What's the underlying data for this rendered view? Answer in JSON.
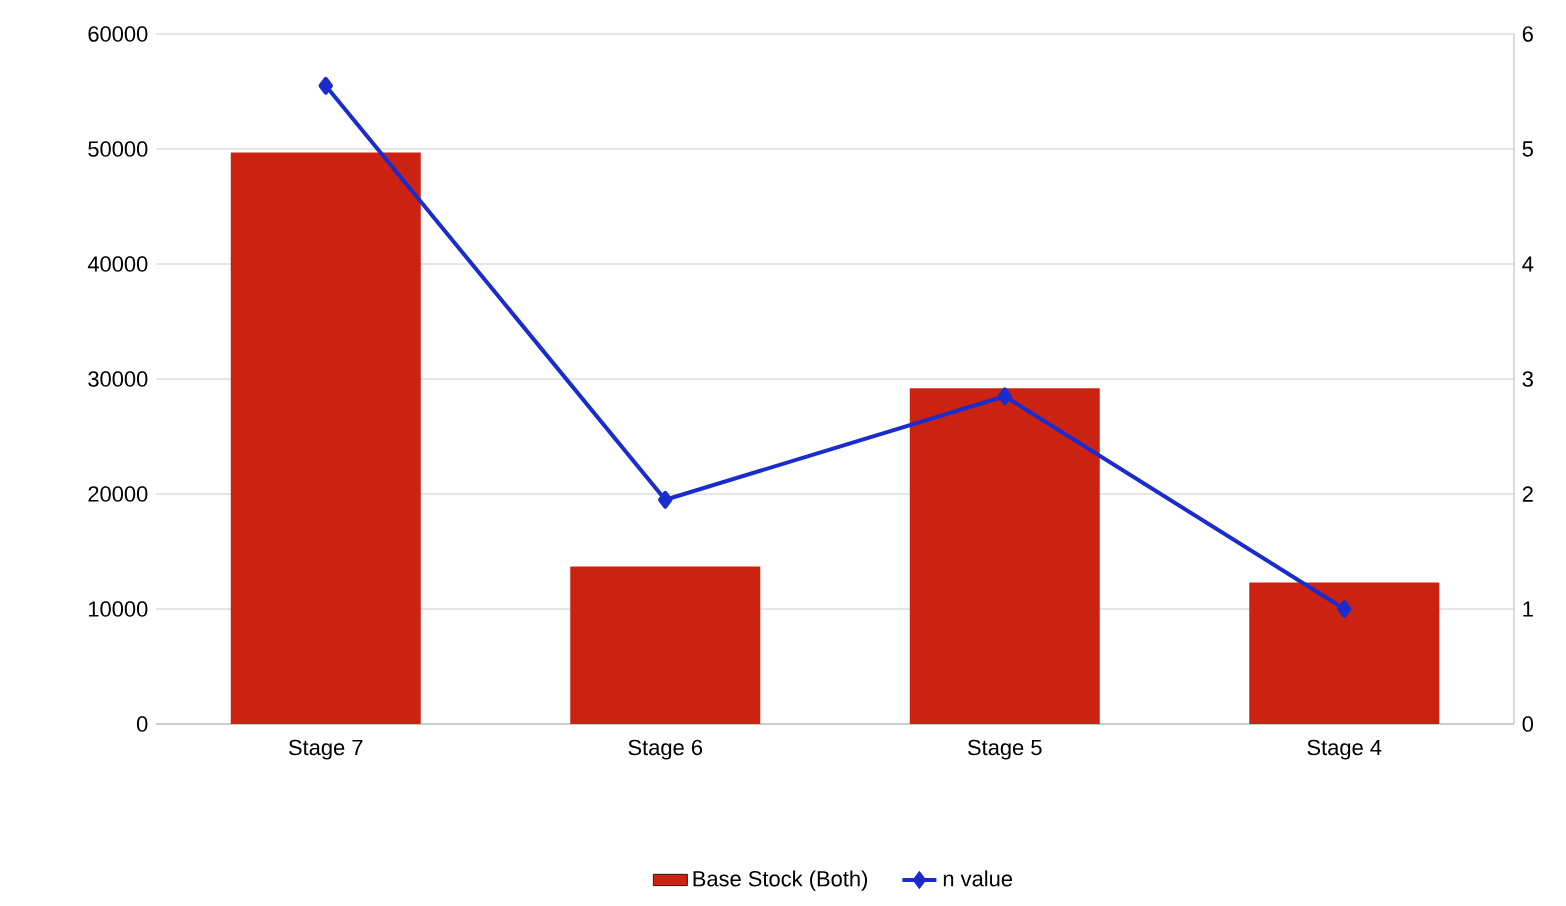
{
  "chart_data": {
    "type": "bar",
    "categories": [
      "Stage 7",
      "Stage 6",
      "Stage 5",
      "Stage 4"
    ],
    "series": [
      {
        "name": "Base Stock (Both)",
        "color": "#cc2211",
        "values": [
          49700,
          13700,
          29200,
          12300
        ]
      },
      {
        "name": "n value",
        "type": "line",
        "axis": "y2",
        "color": "#1a2ccc",
        "marker": "diamond",
        "values": [
          5.55,
          1.95,
          2.85,
          1.0
        ]
      }
    ],
    "ylim": [
      0,
      60000
    ],
    "yticks": [
      0,
      10000,
      20000,
      30000,
      40000,
      50000,
      60000
    ],
    "y2lim": [
      0,
      6
    ],
    "y2ticks": [
      0,
      1,
      2,
      3,
      4,
      5,
      6
    ],
    "grid": "y",
    "legend": "bottom"
  }
}
